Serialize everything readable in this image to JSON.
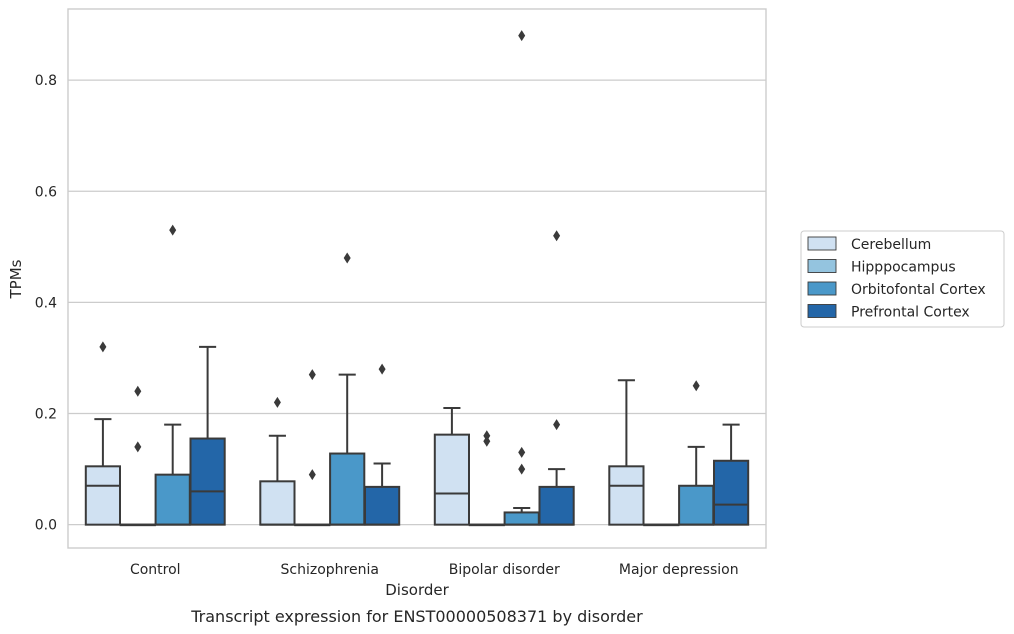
{
  "chart_data": {
    "type": "box",
    "caption": "Transcript expression for ENST00000508371 by disorder",
    "xlabel": "Disorder",
    "ylabel": "TPMs",
    "ylim": [
      -0.042,
      0.928
    ],
    "yticks": [
      0.0,
      0.2,
      0.4,
      0.6,
      0.8
    ],
    "ytick_labels": [
      "0.0",
      "0.2",
      "0.4",
      "0.6",
      "0.8"
    ],
    "grid": "horizontal",
    "legend_position": "right",
    "categories": [
      "Control",
      "Schizophrenia",
      "Bipolar disorder",
      "Major depression"
    ],
    "series": [
      {
        "name": "Cerebellum",
        "color": "#d0e1f2",
        "boxes": [
          {
            "q1": 0.0,
            "median": 0.07,
            "q3": 0.105,
            "whisker_low": 0.0,
            "whisker_high": 0.19,
            "outliers": [
              0.32
            ]
          },
          {
            "q1": 0.0,
            "median": 0.0,
            "q3": 0.078,
            "whisker_low": 0.0,
            "whisker_high": 0.16,
            "outliers": [
              0.22
            ]
          },
          {
            "q1": 0.0,
            "median": 0.056,
            "q3": 0.162,
            "whisker_low": 0.0,
            "whisker_high": 0.21,
            "outliers": []
          },
          {
            "q1": 0.0,
            "median": 0.07,
            "q3": 0.105,
            "whisker_low": 0.0,
            "whisker_high": 0.26,
            "outliers": []
          }
        ]
      },
      {
        "name": "Hipppocampus",
        "color": "#94c4df",
        "boxes": [
          {
            "q1": 0.0,
            "median": 0.0,
            "q3": 0.0,
            "whisker_low": 0.0,
            "whisker_high": 0.0,
            "outliers": [
              0.14,
              0.24
            ]
          },
          {
            "q1": 0.0,
            "median": 0.0,
            "q3": 0.0,
            "whisker_low": 0.0,
            "whisker_high": 0.0,
            "outliers": [
              0.09,
              0.27
            ]
          },
          {
            "q1": 0.0,
            "median": 0.0,
            "q3": 0.0,
            "whisker_low": 0.0,
            "whisker_high": 0.0,
            "outliers": [
              0.15,
              0.16
            ]
          },
          {
            "q1": 0.0,
            "median": 0.0,
            "q3": 0.0,
            "whisker_low": 0.0,
            "whisker_high": 0.0,
            "outliers": []
          }
        ]
      },
      {
        "name": "Orbitofontal Cortex",
        "color": "#4a98c9",
        "boxes": [
          {
            "q1": 0.0,
            "median": 0.0,
            "q3": 0.09,
            "whisker_low": 0.0,
            "whisker_high": 0.18,
            "outliers": [
              0.53
            ]
          },
          {
            "q1": 0.0,
            "median": 0.0,
            "q3": 0.128,
            "whisker_low": 0.0,
            "whisker_high": 0.27,
            "outliers": [
              0.48
            ]
          },
          {
            "q1": 0.0,
            "median": 0.0,
            "q3": 0.022,
            "whisker_low": 0.0,
            "whisker_high": 0.03,
            "outliers": [
              0.1,
              0.13,
              0.88
            ]
          },
          {
            "q1": 0.0,
            "median": 0.0,
            "q3": 0.07,
            "whisker_low": 0.0,
            "whisker_high": 0.14,
            "outliers": [
              0.25
            ]
          }
        ]
      },
      {
        "name": "Prefrontal Cortex",
        "color": "#2366a8",
        "boxes": [
          {
            "q1": 0.0,
            "median": 0.06,
            "q3": 0.155,
            "whisker_low": 0.0,
            "whisker_high": 0.32,
            "outliers": []
          },
          {
            "q1": 0.0,
            "median": 0.0,
            "q3": 0.068,
            "whisker_low": 0.0,
            "whisker_high": 0.11,
            "outliers": [
              0.28
            ]
          },
          {
            "q1": 0.0,
            "median": 0.0,
            "q3": 0.068,
            "whisker_low": 0.0,
            "whisker_high": 0.1,
            "outliers": [
              0.18,
              0.52
            ]
          },
          {
            "q1": 0.0,
            "median": 0.036,
            "q3": 0.115,
            "whisker_low": 0.0,
            "whisker_high": 0.18,
            "outliers": []
          }
        ]
      }
    ]
  }
}
